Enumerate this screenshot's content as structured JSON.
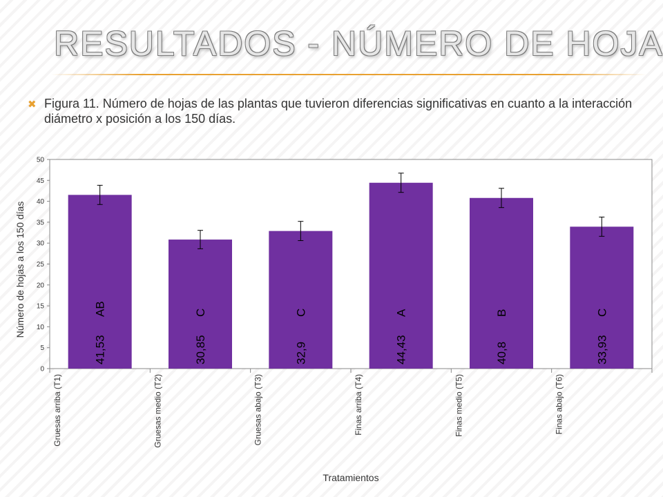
{
  "slide": {
    "title": "RESULTADOS  -  NÚMERO DE HOJAS",
    "bullet_text": "Figura 11. Número de hojas de las plantas que tuvieron diferencias significativas en cuanto a la interacción diámetro x posición a los 150 días.",
    "bullet_icon": "x-mark-icon",
    "accent_color": "#e8a030"
  },
  "chart_data": {
    "type": "bar",
    "categories": [
      "Gruesas arriba (T1)",
      "Gruesas medio (T2)",
      "Gruesas abajo (T3)",
      "Finas arriba (T4)",
      "Finas medio (T5)",
      "Finas abajo (T6)"
    ],
    "values": [
      41.53,
      30.85,
      32.9,
      44.43,
      40.8,
      33.93
    ],
    "value_labels": [
      "41,53",
      "30,85",
      "32,9",
      "44,43",
      "40,8",
      "33,93"
    ],
    "significance_letters": [
      "AB",
      "C",
      "C",
      "A",
      "B",
      "C"
    ],
    "error_bars": [
      2.3,
      2.2,
      2.3,
      2.3,
      2.3,
      2.3
    ],
    "xlabel": "Tratamientos",
    "ylabel": "Número de hojas a los 150 días",
    "ylim": [
      0,
      50
    ],
    "yticks": [
      0,
      5,
      10,
      15,
      20,
      25,
      30,
      35,
      40,
      45,
      50
    ],
    "grid": false,
    "legend": "none",
    "bar_color": "#7030a0"
  }
}
